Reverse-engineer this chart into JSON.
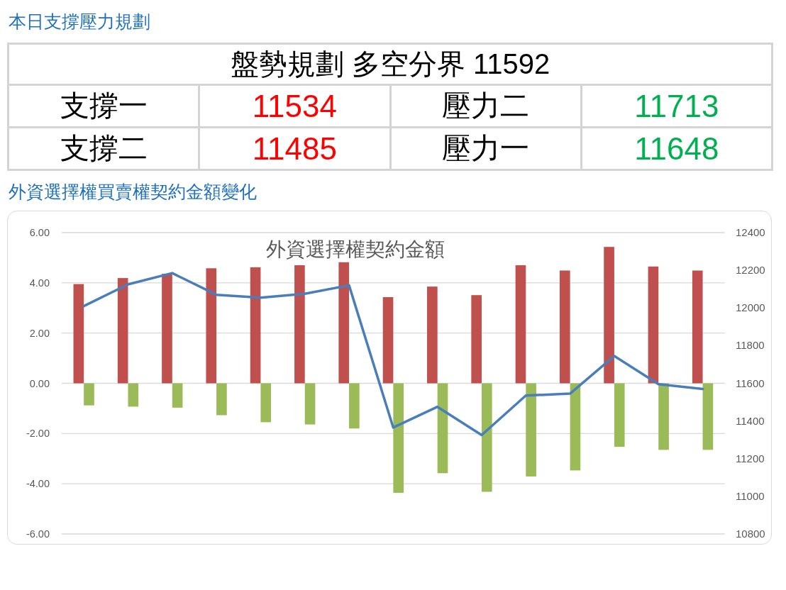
{
  "chart_data": [
    {
      "type": "other",
      "title": "本日支撐壓力規劃",
      "subtitle": "盤勢規劃 多空分界 11592",
      "annotations": [
        "支撐一",
        "11534",
        "壓力二",
        "11713",
        "支撐二",
        "11485",
        "壓力一",
        "11648"
      ],
      "colors": [
        "#000000",
        "#ff0000",
        "#000000",
        "#00b050",
        "#000000",
        "#ff0000",
        "#000000",
        "#00b050"
      ]
    },
    {
      "type": "bar",
      "title": "外資選擇權買賣權契約金額變化",
      "subtitle": "外資選擇權契約金額",
      "categories": [
        null,
        null,
        null,
        null,
        null,
        null,
        null,
        null,
        null,
        null,
        null,
        null,
        null,
        null,
        null
      ],
      "series": [
        {
          "color": "#c0504d",
          "values": [
            3.95,
            4.19,
            4.36,
            4.58,
            4.62,
            4.7,
            4.82,
            3.43,
            3.85,
            3.51,
            4.7,
            4.49,
            5.43,
            4.65,
            4.49
          ]
        },
        {
          "color": "#9bbb59",
          "values": [
            -0.88,
            -0.93,
            -0.97,
            -1.27,
            -1.55,
            -1.64,
            -1.8,
            -4.36,
            -3.58,
            -4.32,
            -3.71,
            -3.47,
            -2.53,
            -2.65,
            -2.65
          ]
        },
        {
          "type": "line",
          "axis": "y2",
          "color": "#4a7ebb",
          "values": [
            12010,
            12125,
            12185,
            12070,
            12055,
            12075,
            12120,
            11365,
            11475,
            11325,
            11535,
            11545,
            11745,
            11595,
            11570
          ]
        }
      ],
      "ylim": [
        -6,
        6
      ],
      "yticks": [
        {
          "value": -6,
          "label": "-6.00"
        },
        {
          "value": -4,
          "label": "-4.00"
        },
        {
          "value": -2,
          "label": "-2.00"
        },
        {
          "value": 0,
          "label": "0.00"
        },
        {
          "value": 2,
          "label": "2.00"
        },
        {
          "value": 4,
          "label": "4.00"
        },
        {
          "value": 6,
          "label": "6.00"
        }
      ],
      "y2lim": [
        10800,
        12400
      ],
      "y2ticks": [
        10800,
        11000,
        11200,
        11400,
        11600,
        11800,
        12000,
        12200,
        12400
      ],
      "grid": "y"
    }
  ]
}
